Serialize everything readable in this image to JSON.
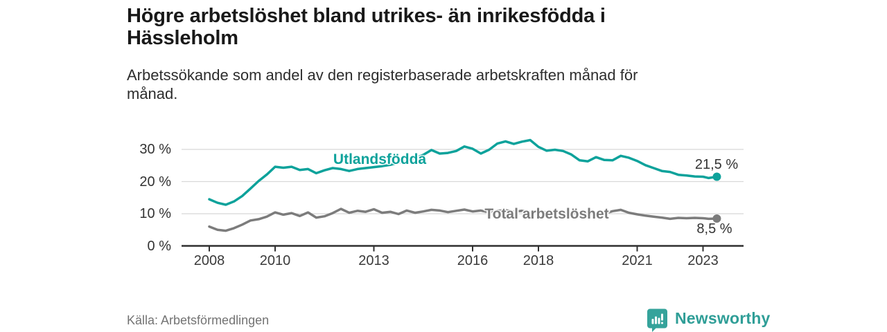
{
  "header": {
    "title_lines": [
      "Högre arbetslöshet bland utrikes- än inrikesfödda i",
      "Hässleholm"
    ],
    "subtitle_lines": [
      "Arbetssökande som andel av den registerbaserade arbetskraften månad för",
      "månad."
    ]
  },
  "footer": {
    "source": "Källa: Arbetsförmedlingen",
    "brand": "Newsworthy",
    "brand_color": "#2f9e97"
  },
  "chart_data": {
    "type": "line",
    "unit": "%",
    "x_range": [
      2007.15,
      2024.2
    ],
    "ylim": [
      0,
      35
    ],
    "grid": "horizontal",
    "x_axis": {
      "ticks": [
        {
          "year": 2008,
          "label": "2008"
        },
        {
          "year": 2010,
          "label": "2010"
        },
        {
          "year": 2013,
          "label": "2013"
        },
        {
          "year": 2016,
          "label": "2016"
        },
        {
          "year": 2018,
          "label": "2018"
        },
        {
          "year": 2021,
          "label": "2021"
        },
        {
          "year": 2023,
          "label": "2023"
        }
      ]
    },
    "y_axis": {
      "ticks": [
        {
          "value": 30,
          "label": "30 %"
        },
        {
          "value": 20,
          "label": "20 %"
        },
        {
          "value": 10,
          "label": "10 %"
        },
        {
          "value": 0,
          "label": "0 %"
        }
      ]
    },
    "colors": {
      "grid": "#d8d8d8",
      "axis": "#2f2f2f",
      "value_label": "#333333"
    },
    "series": [
      {
        "name": "Utlandsfödda",
        "color": "#0da29b",
        "end_label": "21,5 %",
        "end_value": 21.5,
        "points": [
          [
            2008.0,
            14.5
          ],
          [
            2008.25,
            13.4
          ],
          [
            2008.5,
            12.8
          ],
          [
            2008.75,
            13.8
          ],
          [
            2009.0,
            15.5
          ],
          [
            2009.25,
            17.8
          ],
          [
            2009.5,
            20.2
          ],
          [
            2009.75,
            22.2
          ],
          [
            2010.0,
            24.6
          ],
          [
            2010.25,
            24.3
          ],
          [
            2010.5,
            24.6
          ],
          [
            2010.75,
            23.6
          ],
          [
            2011.0,
            23.9
          ],
          [
            2011.25,
            22.6
          ],
          [
            2011.5,
            23.5
          ],
          [
            2011.75,
            24.2
          ],
          [
            2012.0,
            23.9
          ],
          [
            2012.25,
            23.3
          ],
          [
            2012.5,
            23.9
          ],
          [
            2012.75,
            24.2
          ],
          [
            2013.0,
            24.5
          ],
          [
            2013.25,
            24.8
          ],
          [
            2013.5,
            25.2
          ],
          [
            2013.75,
            25.9
          ],
          [
            2014.0,
            26.5
          ],
          [
            2014.25,
            27.2
          ],
          [
            2014.5,
            28.3
          ],
          [
            2014.75,
            29.8
          ],
          [
            2015.0,
            28.7
          ],
          [
            2015.25,
            28.9
          ],
          [
            2015.5,
            29.5
          ],
          [
            2015.75,
            30.9
          ],
          [
            2016.0,
            30.2
          ],
          [
            2016.25,
            28.7
          ],
          [
            2016.5,
            29.9
          ],
          [
            2016.75,
            31.8
          ],
          [
            2017.0,
            32.5
          ],
          [
            2017.25,
            31.7
          ],
          [
            2017.5,
            32.4
          ],
          [
            2017.75,
            32.9
          ],
          [
            2018.0,
            30.8
          ],
          [
            2018.25,
            29.6
          ],
          [
            2018.5,
            29.9
          ],
          [
            2018.75,
            29.5
          ],
          [
            2019.0,
            28.4
          ],
          [
            2019.25,
            26.6
          ],
          [
            2019.5,
            26.3
          ],
          [
            2019.75,
            27.6
          ],
          [
            2020.0,
            26.7
          ],
          [
            2020.25,
            26.6
          ],
          [
            2020.5,
            28.0
          ],
          [
            2020.75,
            27.4
          ],
          [
            2021.0,
            26.4
          ],
          [
            2021.25,
            25.1
          ],
          [
            2021.5,
            24.2
          ],
          [
            2021.75,
            23.3
          ],
          [
            2022.0,
            23.0
          ],
          [
            2022.25,
            22.1
          ],
          [
            2022.5,
            21.9
          ],
          [
            2022.75,
            21.6
          ],
          [
            2023.0,
            21.5
          ],
          [
            2023.17,
            21.1
          ],
          [
            2023.42,
            21.5
          ]
        ]
      },
      {
        "name": "Total arbetslöshet",
        "color": "#7c7c7c",
        "end_label": "8,5 %",
        "end_value": 8.5,
        "points": [
          [
            2008.0,
            6.0
          ],
          [
            2008.25,
            5.0
          ],
          [
            2008.5,
            4.7
          ],
          [
            2008.75,
            5.5
          ],
          [
            2009.0,
            6.6
          ],
          [
            2009.25,
            7.9
          ],
          [
            2009.5,
            8.3
          ],
          [
            2009.75,
            9.1
          ],
          [
            2010.0,
            10.4
          ],
          [
            2010.25,
            9.7
          ],
          [
            2010.5,
            10.2
          ],
          [
            2010.75,
            9.3
          ],
          [
            2011.0,
            10.4
          ],
          [
            2011.25,
            8.8
          ],
          [
            2011.5,
            9.2
          ],
          [
            2011.75,
            10.2
          ],
          [
            2012.0,
            11.5
          ],
          [
            2012.25,
            10.3
          ],
          [
            2012.5,
            10.9
          ],
          [
            2012.75,
            10.6
          ],
          [
            2013.0,
            11.4
          ],
          [
            2013.25,
            10.3
          ],
          [
            2013.5,
            10.6
          ],
          [
            2013.75,
            9.9
          ],
          [
            2014.0,
            11.0
          ],
          [
            2014.25,
            10.3
          ],
          [
            2014.5,
            10.7
          ],
          [
            2014.75,
            11.2
          ],
          [
            2015.0,
            11.0
          ],
          [
            2015.25,
            10.5
          ],
          [
            2015.5,
            10.9
          ],
          [
            2015.75,
            11.3
          ],
          [
            2016.0,
            10.7
          ],
          [
            2016.25,
            11.0
          ],
          [
            2016.5,
            10.4
          ],
          [
            2016.75,
            10.9
          ],
          [
            2017.0,
            11.1
          ],
          [
            2017.25,
            10.6
          ],
          [
            2017.5,
            10.9
          ],
          [
            2017.75,
            10.5
          ],
          [
            2018.0,
            10.8
          ],
          [
            2018.25,
            10.4
          ],
          [
            2018.5,
            10.2
          ],
          [
            2018.75,
            10.5
          ],
          [
            2019.0,
            10.1
          ],
          [
            2019.25,
            10.3
          ],
          [
            2019.5,
            9.9
          ],
          [
            2019.75,
            10.2
          ],
          [
            2020.0,
            10.0
          ],
          [
            2020.25,
            10.8
          ],
          [
            2020.5,
            11.2
          ],
          [
            2020.75,
            10.3
          ],
          [
            2021.0,
            9.8
          ],
          [
            2021.25,
            9.4
          ],
          [
            2021.5,
            9.1
          ],
          [
            2021.75,
            8.8
          ],
          [
            2022.0,
            8.4
          ],
          [
            2022.25,
            8.7
          ],
          [
            2022.5,
            8.6
          ],
          [
            2022.75,
            8.7
          ],
          [
            2023.0,
            8.6
          ],
          [
            2023.17,
            8.4
          ],
          [
            2023.42,
            8.5
          ]
        ]
      }
    ]
  }
}
